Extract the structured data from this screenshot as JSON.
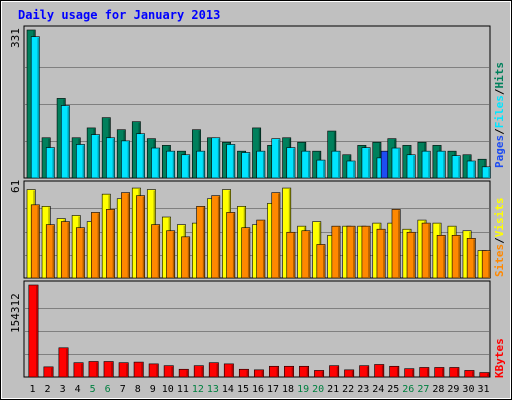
{
  "chart_data": {
    "title": "Daily usage for January 2013",
    "x": [
      "1",
      "2",
      "3",
      "4",
      "5",
      "6",
      "7",
      "8",
      "9",
      "10",
      "11",
      "12",
      "13",
      "14",
      "15",
      "16",
      "17",
      "18",
      "19",
      "20",
      "21",
      "22",
      "23",
      "24",
      "25",
      "26",
      "27",
      "28",
      "29",
      "30",
      "31"
    ],
    "weekend_days": [
      "5",
      "6",
      "12",
      "13",
      "19",
      "20",
      "26",
      "27"
    ],
    "colors": {
      "background": "#c0c0c0",
      "title": "#0000ff",
      "weekend_label": "#008040",
      "hits": "#00805c",
      "files": "#00e5ff",
      "pages": "#1e4df2",
      "visits": "#ffff00",
      "sites": "#ff8800",
      "kbytes": "#ff0000"
    },
    "panels": [
      {
        "type": "bar",
        "scale_max_label": "331",
        "ylim": [
          0,
          331
        ],
        "series": [
          {
            "name": "Hits",
            "values": [
              331,
              90,
              178,
              90,
              112,
              135,
              108,
              126,
              88,
              73,
              60,
              108,
              90,
              80,
              60,
              112,
              73,
              90,
              80,
              60,
              105,
              52,
              73,
              80,
              88,
              73,
              80,
              73,
              60,
              52,
              42
            ]
          },
          {
            "name": "Files",
            "values": [
              316,
              68,
              162,
              75,
              97,
              90,
              83,
              99,
              67,
              60,
              52,
              60,
              90,
              75,
              57,
              60,
              88,
              68,
              60,
              40,
              60,
              38,
              68,
              45,
              67,
              52,
              60,
              60,
              50,
              38,
              25
            ]
          },
          {
            "name": "Pages",
            "values": [
              0,
              0,
              0,
              0,
              0,
              0,
              0,
              0,
              0,
              0,
              0,
              0,
              0,
              0,
              0,
              0,
              0,
              0,
              0,
              0,
              0,
              0,
              0,
              60,
              0,
              0,
              0,
              0,
              0,
              0,
              0
            ]
          }
        ],
        "legend": [
          "Pages",
          "Files",
          "Hits"
        ]
      },
      {
        "type": "bar",
        "scale_max_label": "61",
        "ylim": [
          0,
          61
        ],
        "series": [
          {
            "name": "Visits",
            "values": [
              58,
              47,
              39,
              41,
              37,
              55,
              52,
              59,
              58,
              40,
              35,
              36,
              52,
              58,
              47,
              35,
              49,
              59,
              34,
              37,
              28,
              34,
              34,
              36,
              36,
              32,
              38,
              36,
              34,
              31,
              18
            ]
          },
          {
            "name": "Sites",
            "values": [
              48,
              35,
              37,
              33,
              43,
              45,
              56,
              54,
              35,
              31,
              27,
              47,
              54,
              43,
              33,
              38,
              56,
              30,
              31,
              22,
              34,
              34,
              34,
              32,
              45,
              30,
              36,
              28,
              28,
              26,
              18
            ]
          }
        ],
        "legend": [
          "Sites",
          "Visits"
        ]
      },
      {
        "type": "bar",
        "scale_max_label": "154312",
        "ylim": [
          0,
          154312
        ],
        "series": [
          {
            "name": "KBytes",
            "values": [
              154312,
              17000,
              49000,
              24000,
              26000,
              26000,
              24000,
              25000,
              22000,
              19000,
              13000,
              19000,
              24000,
              22000,
              13000,
              12000,
              18000,
              18000,
              18000,
              11000,
              19000,
              12000,
              19000,
              21000,
              18000,
              14000,
              16000,
              16000,
              16000,
              11000,
              7500
            ]
          }
        ],
        "legend": [
          "KBytes"
        ]
      }
    ]
  }
}
